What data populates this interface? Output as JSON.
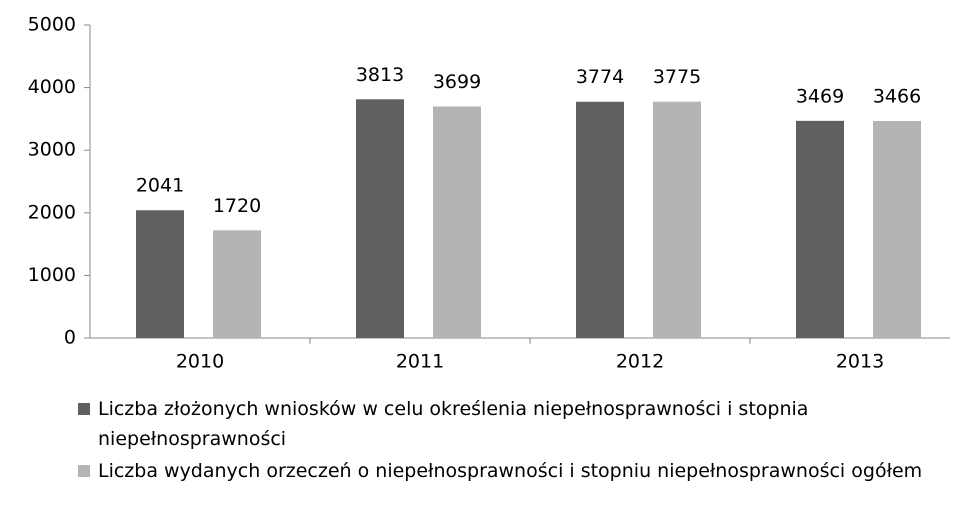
{
  "chart_data": {
    "type": "bar",
    "categories": [
      "2010",
      "2011",
      "2012",
      "2013"
    ],
    "series": [
      {
        "name": "Liczba złożonych wniosków w celu określenia niepełnosprawności i stopnia niepełnosprawności",
        "color": "#606060",
        "values": [
          2041,
          3813,
          3774,
          3469
        ]
      },
      {
        "name": "Liczba wydanych orzeczeń o niepełnosprawności i stopniu niepełnosprawności ogółem",
        "color": "#b4b4b4",
        "values": [
          1720,
          3699,
          3775,
          3466
        ]
      }
    ],
    "ylim": [
      0,
      5000
    ],
    "yticks": [
      0,
      1000,
      2000,
      3000,
      4000,
      5000
    ],
    "grid": false,
    "legend": "bottom"
  }
}
